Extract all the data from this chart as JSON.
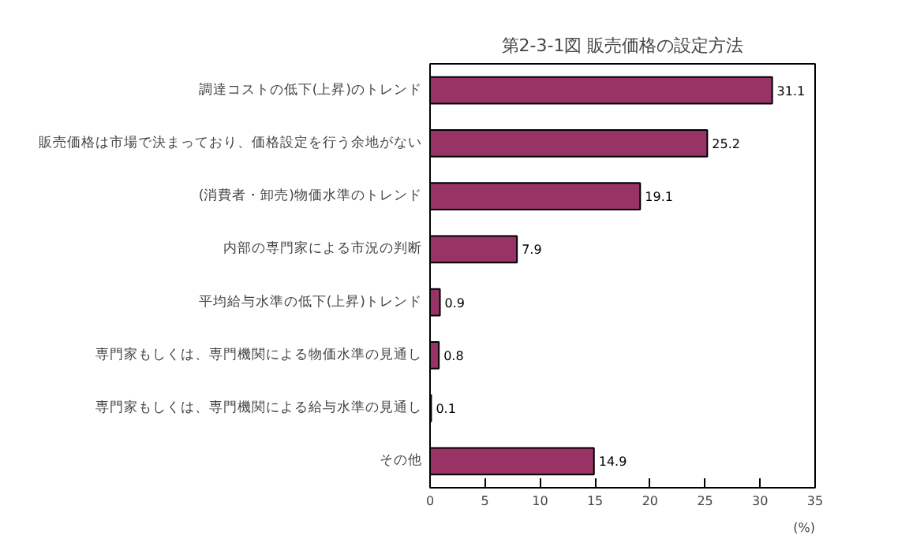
{
  "chart_data": {
    "type": "bar",
    "orientation": "horizontal",
    "title": "第2-3-1図 販売価格の設定方法",
    "xlabel": "(%)",
    "categories": [
      "調達コストの低下(上昇)のトレンド",
      "販売価格は市場で決まっており、価格設定を行う余地がない",
      "(消費者・卸売)物価水準のトレンド",
      "内部の専門家による市況の判断",
      "平均給与水準の低下(上昇)トレンド",
      "専門家もしくは、専門機関による物価水準の見通し",
      "専門家もしくは、専門機関による給与水準の見通し",
      "その他"
    ],
    "values": [
      31.1,
      25.2,
      19.1,
      7.9,
      0.9,
      0.8,
      0.1,
      14.9
    ],
    "color": "#993366",
    "xlim": [
      0,
      35
    ],
    "xticks": [
      0,
      5,
      10,
      15,
      20,
      25,
      30,
      35
    ],
    "data_labels": true,
    "grid": false
  }
}
